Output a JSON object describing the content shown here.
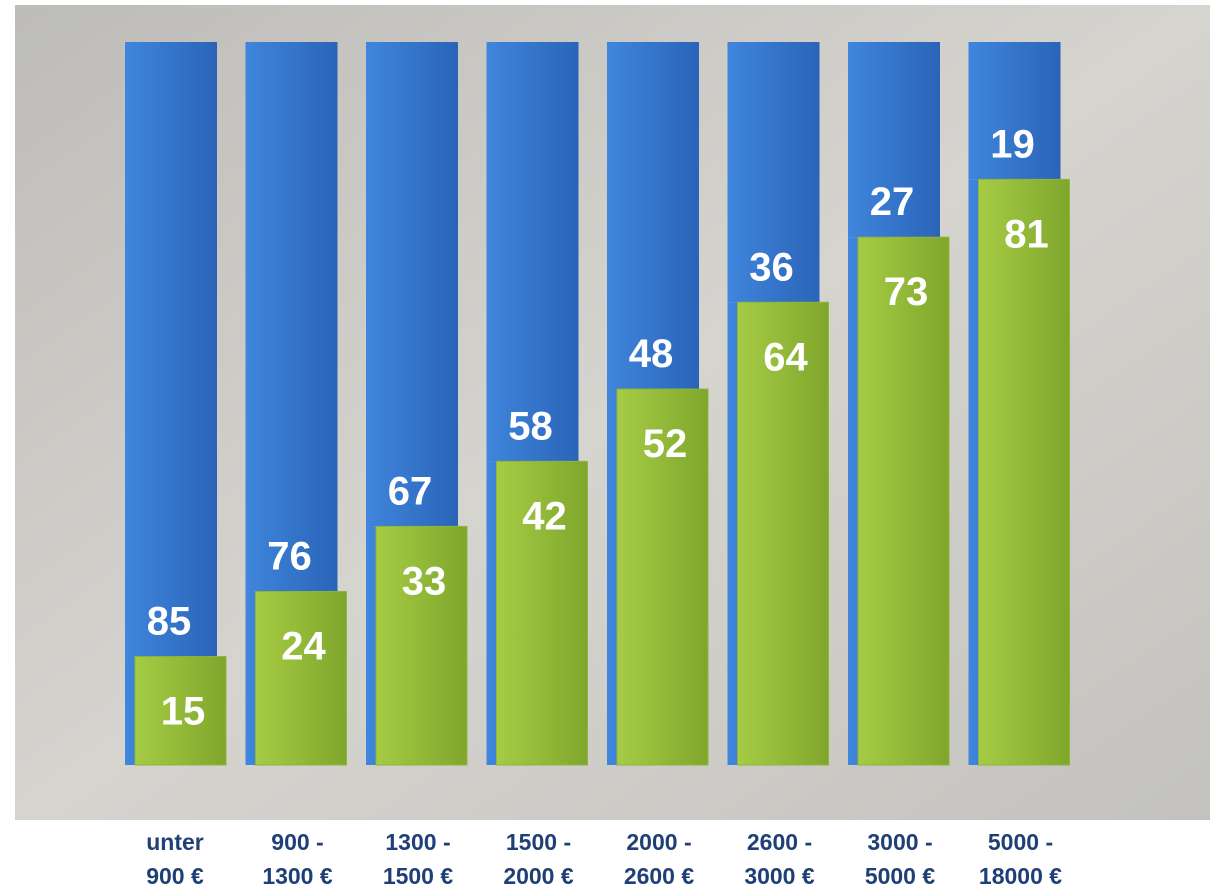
{
  "chart_data": {
    "type": "bar",
    "categories": [
      [
        "unter",
        "900 €"
      ],
      [
        "900 -",
        "1300 €"
      ],
      [
        "1300 -",
        "1500 €"
      ],
      [
        "1500 -",
        "2000 €"
      ],
      [
        "2000 -",
        "2600 €"
      ],
      [
        "2600 -",
        "3000 €"
      ],
      [
        "3000 -",
        "5000 €"
      ],
      [
        "5000 -",
        "18000 €"
      ]
    ],
    "series": [
      {
        "color": "#9bc23c",
        "values": [
          15,
          24,
          33,
          42,
          52,
          64,
          73,
          81
        ]
      },
      {
        "color": "#3a7bd0",
        "values": [
          85,
          76,
          67,
          58,
          48,
          36,
          27,
          19
        ]
      }
    ],
    "ylim": [
      0,
      100
    ],
    "stacked": true
  }
}
